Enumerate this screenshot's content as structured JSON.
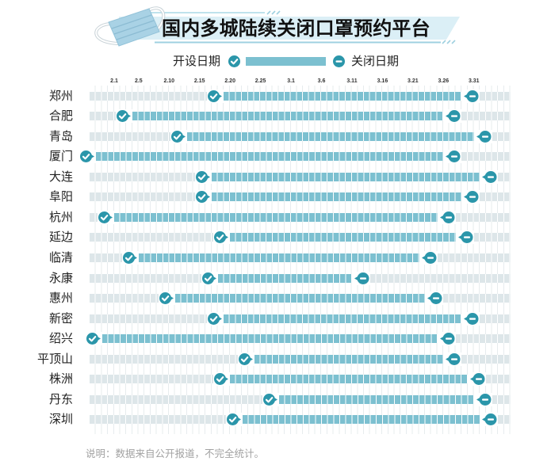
{
  "title": "国内多城陆续关闭口罩预约平台",
  "legend": {
    "open_label": "开设日期",
    "close_label": "关闭日期",
    "open_icon": "check-circle-icon",
    "close_icon": "minus-circle-icon"
  },
  "footer": {
    "note": "说明：数据来自公开报道，不完全统计。"
  },
  "colors": {
    "active_cell": "#7cc0d0",
    "inactive_cell": "#dde6e9",
    "marker": "#2b96aa",
    "banner": "#dbeff6",
    "title_text": "#111111",
    "footer_text": "#a2a2a2"
  },
  "chart_data": {
    "type": "bar",
    "orientation": "horizontal",
    "subtype": "date-range",
    "title": "国内多城陆续关闭口罩预约平台",
    "xlabel": "",
    "ylabel": "",
    "x_range": [
      "1.28",
      "4.5"
    ],
    "x_ticks": [
      "2.1",
      "2.5",
      "2.10",
      "2.15",
      "2.20",
      "2.25",
      "3.1",
      "3.6",
      "3.11",
      "3.16",
      "3.21",
      "3.26",
      "3.31"
    ],
    "grid": true,
    "legend": [
      "开设日期",
      "关闭日期"
    ],
    "legend_position": "top",
    "categories": [
      "郑州",
      "合肥",
      "青岛",
      "厦门",
      "大连",
      "阜阳",
      "杭州",
      "延边",
      "临清",
      "永康",
      "惠州",
      "新密",
      "绍兴",
      "平顶山",
      "株洲",
      "丹东",
      "深圳"
    ],
    "series": [
      {
        "name": "开设日期",
        "values": [
          "2.19",
          "2.4",
          "2.13",
          "1.29",
          "2.17",
          "2.17",
          "2.1",
          "2.20",
          "2.5",
          "2.18",
          "2.11",
          "2.19",
          "1.30",
          "2.24",
          "2.20",
          "2.28",
          "2.22"
        ]
      },
      {
        "name": "关闭日期",
        "values": [
          "3.29",
          "3.26",
          "3.31",
          "3.26",
          "4.1",
          "3.29",
          "3.25",
          "3.28",
          "3.22",
          "3.11",
          "3.23",
          "3.29",
          "3.25",
          "3.26",
          "3.30",
          "3.31",
          "4.1"
        ]
      }
    ],
    "rows": [
      {
        "city": "郑州",
        "open": "2.19",
        "close": "3.29"
      },
      {
        "city": "合肥",
        "open": "2.4",
        "close": "3.26"
      },
      {
        "city": "青岛",
        "open": "2.13",
        "close": "3.31"
      },
      {
        "city": "厦门",
        "open": "1.29",
        "close": "3.26"
      },
      {
        "city": "大连",
        "open": "2.17",
        "close": "4.1"
      },
      {
        "city": "阜阳",
        "open": "2.17",
        "close": "3.29"
      },
      {
        "city": "杭州",
        "open": "2.1",
        "close": "3.25"
      },
      {
        "city": "延边",
        "open": "2.20",
        "close": "3.28"
      },
      {
        "city": "临清",
        "open": "2.5",
        "close": "3.22"
      },
      {
        "city": "永康",
        "open": "2.18",
        "close": "3.11"
      },
      {
        "city": "惠州",
        "open": "2.11",
        "close": "3.23"
      },
      {
        "city": "新密",
        "open": "2.19",
        "close": "3.29"
      },
      {
        "city": "绍兴",
        "open": "1.30",
        "close": "3.25"
      },
      {
        "city": "平顶山",
        "open": "2.24",
        "close": "3.26"
      },
      {
        "city": "株洲",
        "open": "2.20",
        "close": "3.30"
      },
      {
        "city": "丹东",
        "open": "2.28",
        "close": "3.31"
      },
      {
        "city": "深圳",
        "open": "2.22",
        "close": "4.1"
      }
    ]
  }
}
